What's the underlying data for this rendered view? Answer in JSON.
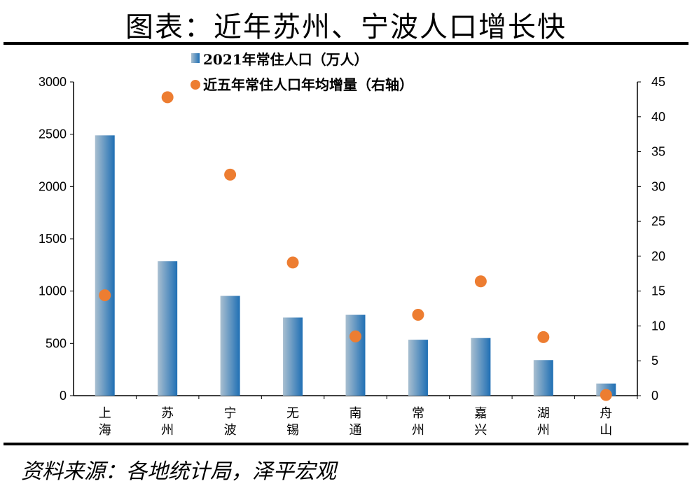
{
  "title": "图表：近年苏州、宁波人口增长快",
  "source": "资料来源：各地统计局，泽平宏观",
  "colors": {
    "bar_light": "#a9bfd0",
    "bar_dark": "#1f6fb4",
    "dot": "#ed7d31"
  },
  "chart_data": {
    "type": "bar+scatter",
    "categories": [
      "上海",
      "苏州",
      "宁波",
      "无锡",
      "南通",
      "常州",
      "嘉兴",
      "湖州",
      "舟山"
    ],
    "series": [
      {
        "name": "2021年常住人口（万人）",
        "type": "bar",
        "axis": "left",
        "values": [
          2489,
          1285,
          954,
          747,
          773,
          535,
          551,
          340,
          116
        ]
      },
      {
        "name": "近五年常住人口年均增量（右轴）",
        "type": "scatter",
        "axis": "right",
        "values": [
          14.4,
          42.8,
          31.7,
          19.1,
          8.5,
          11.6,
          16.4,
          8.4,
          0.1
        ]
      }
    ],
    "y_left": {
      "range": [
        0,
        3000
      ],
      "ticks": [
        0,
        500,
        1000,
        1500,
        2000,
        2500,
        3000
      ]
    },
    "y_right": {
      "range": [
        0,
        45
      ],
      "ticks": [
        0,
        5,
        10,
        15,
        20,
        25,
        30,
        35,
        40,
        45
      ]
    },
    "grid": false,
    "legend": "top-center"
  }
}
